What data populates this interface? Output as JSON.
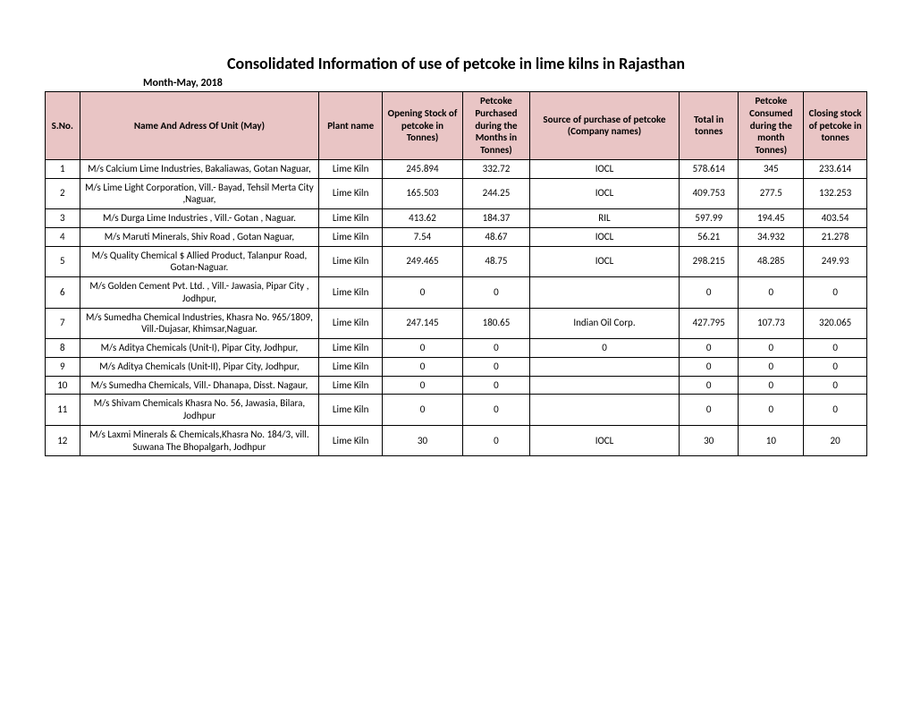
{
  "title": "Consolidated Information of use of petcoke in lime kilns in Rajasthan",
  "subtitle": "Month-May, 2018",
  "header_bg": "#e9c5c5",
  "columns": {
    "sno": "S.No.",
    "name": "Name And Adress Of Unit (May)",
    "plant": "Plant name",
    "opening": "Opening Stock of petcoke in Tonnes)",
    "purchased": "Petcoke Purchased during the Months in Tonnes)",
    "source": "Source of purchase of petcoke (Company names)",
    "total": "Total in tonnes",
    "consumed": "Petcoke Consumed during the month Tonnes)",
    "closing": "Closing stock of petcoke in tonnes"
  },
  "rows": [
    {
      "sno": "1",
      "name": "M/s Calcium Lime Industries, Bakaliawas, Gotan Naguar,",
      "plant": "Lime Kiln",
      "opening": "245.894",
      "purchased": "332.72",
      "source": "IOCL",
      "total": "578.614",
      "consumed": "345",
      "closing": "233.614"
    },
    {
      "sno": "2",
      "name": "M/s Lime Light Corporation, Vill.- Bayad, Tehsil Merta City ,Naguar,",
      "plant": "Lime Kiln",
      "opening": "165.503",
      "purchased": "244.25",
      "source": "IOCL",
      "total": "409.753",
      "consumed": "277.5",
      "closing": "132.253"
    },
    {
      "sno": "3",
      "name": "M/s Durga Lime Industries  , Vill.- Gotan , Naguar.",
      "plant": "Lime Kiln",
      "opening": "413.62",
      "purchased": "184.37",
      "source": "RIL",
      "total": "597.99",
      "consumed": "194.45",
      "closing": "403.54"
    },
    {
      "sno": "4",
      "name": "M/s Maruti Minerals, Shiv Road , Gotan Naguar,",
      "plant": "Lime Kiln",
      "opening": "7.54",
      "purchased": "48.67",
      "source": "IOCL",
      "total": "56.21",
      "consumed": "34.932",
      "closing": "21.278"
    },
    {
      "sno": "5",
      "name": "M/s Quality Chemical $ Allied Product, Talanpur Road, Gotan-Naguar.",
      "plant": "Lime Kiln",
      "opening": "249.465",
      "purchased": "48.75",
      "source": "IOCL",
      "total": "298.215",
      "consumed": "48.285",
      "closing": "249.93"
    },
    {
      "sno": "6",
      "name": "M/s  Golden Cement Pvt. Ltd. , Vill.- Jawasia, Pipar City , Jodhpur,",
      "plant": "Lime Kiln",
      "opening": "0",
      "purchased": "0",
      "source": "",
      "total": "0",
      "consumed": "0",
      "closing": "0"
    },
    {
      "sno": "7",
      "name": "M/s Sumedha Chemical Industries, Khasra No. 965/1809, Vill.-Dujasar, Khimsar,Naguar.",
      "plant": "Lime Kiln",
      "opening": "247.145",
      "purchased": "180.65",
      "source": "Indian Oil Corp.",
      "total": "427.795",
      "consumed": "107.73",
      "closing": "320.065"
    },
    {
      "sno": "8",
      "name": "M/s Aditya Chemicals (Unit-I), Pipar City, Jodhpur,",
      "plant": "Lime Kiln",
      "opening": "0",
      "purchased": "0",
      "source": "0",
      "total": "0",
      "consumed": "0",
      "closing": "0"
    },
    {
      "sno": "9",
      "name": "M/s Aditya Chemicals (Unit-II), Pipar City, Jodhpur,",
      "plant": "Lime Kiln",
      "opening": "0",
      "purchased": "0",
      "source": "",
      "total": "0",
      "consumed": "0",
      "closing": "0"
    },
    {
      "sno": "10",
      "name": "M/s Sumedha Chemicals, Vill.- Dhanapa, Disst. Nagaur,",
      "plant": "Lime Kiln",
      "opening": "0",
      "purchased": "0",
      "source": "",
      "total": "0",
      "consumed": "0",
      "closing": "0"
    },
    {
      "sno": "11",
      "name": "M/s Shivam Chemicals Khasra No. 56, Jawasia, Bilara, Jodhpur",
      "plant": "Lime Kiln",
      "opening": "0",
      "purchased": "0",
      "source": "",
      "total": "0",
      "consumed": "0",
      "closing": "0"
    },
    {
      "sno": "12",
      "name": "M/s Laxmi Minerals & Chemicals,Khasra No. 184/3, vill. Suwana The Bhopalgarh, Jodhpur",
      "plant": "Lime Kiln",
      "opening": "30",
      "purchased": "0",
      "source": "IOCL",
      "total": "30",
      "consumed": "10",
      "closing": "20"
    }
  ]
}
